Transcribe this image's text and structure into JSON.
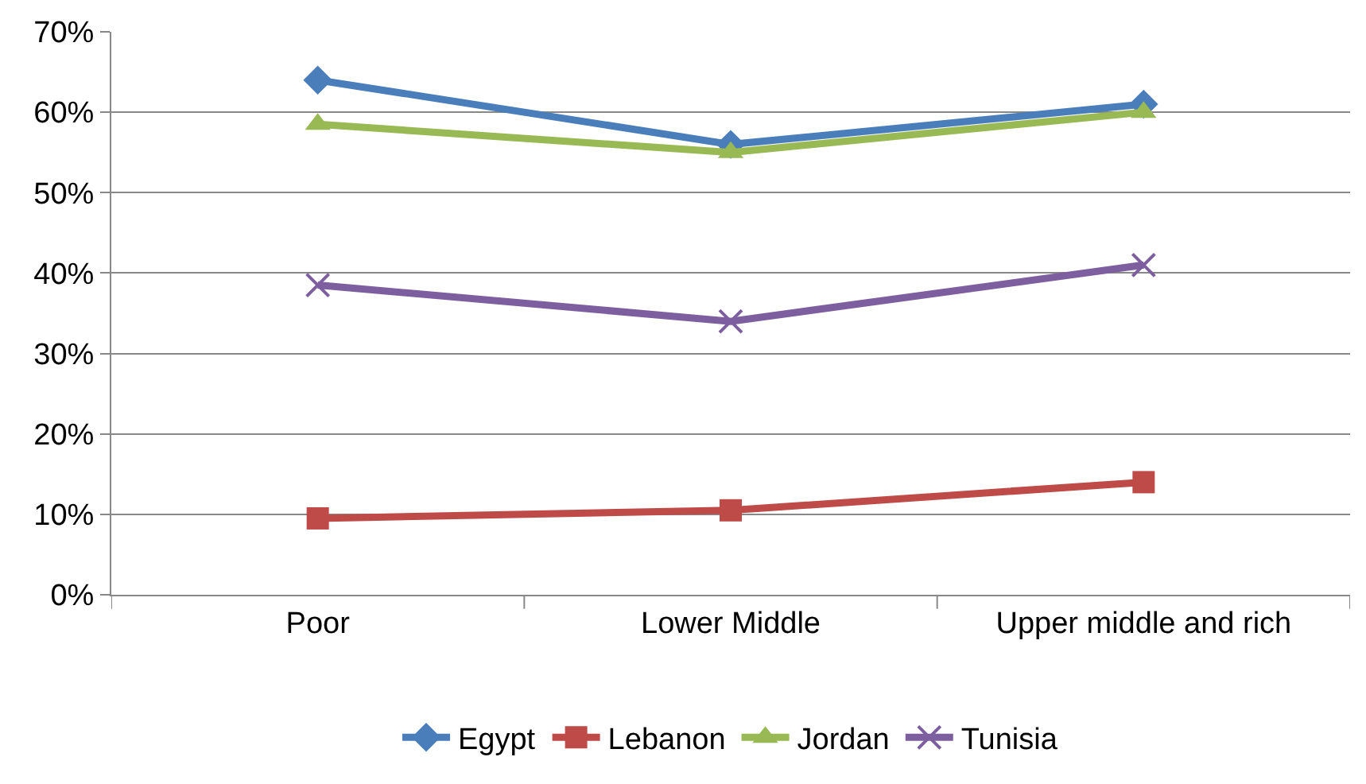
{
  "chart_data": {
    "type": "line",
    "categories": [
      "Poor",
      "Lower Middle",
      "Upper middle and rich"
    ],
    "series": [
      {
        "name": "Egypt",
        "color": "#4a7ebb",
        "marker": "diamond",
        "values": [
          64,
          56,
          61
        ]
      },
      {
        "name": "Lebanon",
        "color": "#be4b48",
        "marker": "square",
        "values": [
          9.5,
          10.5,
          14
        ]
      },
      {
        "name": "Jordan",
        "color": "#98b954",
        "marker": "triangle",
        "values": [
          58.5,
          55,
          60
        ]
      },
      {
        "name": "Tunisia",
        "color": "#7d5fa0",
        "marker": "cross",
        "values": [
          38.5,
          34,
          41
        ]
      }
    ],
    "ylim": [
      0,
      70
    ],
    "yticks": [
      {
        "value": 0,
        "label": "0%"
      },
      {
        "value": 10,
        "label": "10%"
      },
      {
        "value": 20,
        "label": "20%"
      },
      {
        "value": 30,
        "label": "30%"
      },
      {
        "value": 40,
        "label": "40%"
      },
      {
        "value": 50,
        "label": "50%"
      },
      {
        "value": 60,
        "label": "60%"
      },
      {
        "value": 70,
        "label": "70%"
      }
    ],
    "grid": "y",
    "legend": "bottom"
  }
}
